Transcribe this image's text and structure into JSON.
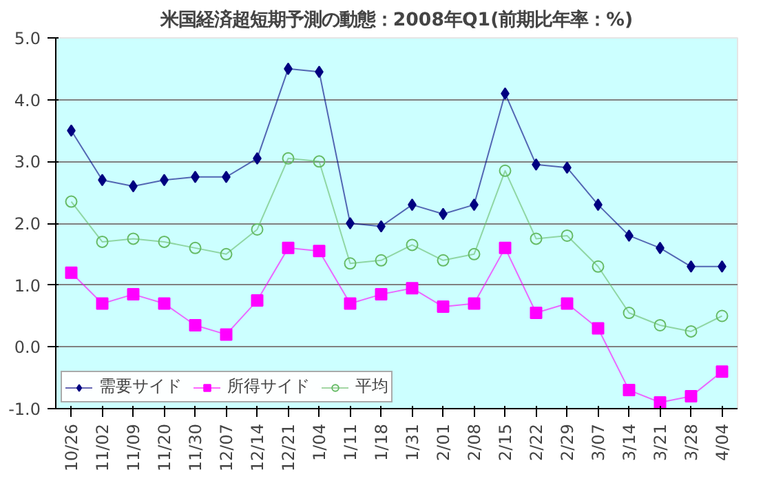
{
  "chart_data": {
    "type": "line",
    "title": "米国経済超短期予測の動態：2008年Q1(前期比年率：%)",
    "categories": [
      "10/26",
      "11/02",
      "11/09",
      "11/20",
      "11/30",
      "12/07",
      "12/14",
      "12/21",
      "1/04",
      "1/11",
      "1/18",
      "1/31",
      "2/01",
      "2/08",
      "2/15",
      "2/22",
      "2/29",
      "3/07",
      "3/14",
      "3/21",
      "3/28",
      "4/04"
    ],
    "series": [
      {
        "name": "需要サイド",
        "color": "#000080",
        "marker": "diamond",
        "values": [
          3.5,
          2.7,
          2.6,
          2.7,
          2.75,
          2.75,
          3.05,
          4.5,
          4.45,
          2.0,
          1.95,
          2.3,
          2.15,
          2.3,
          4.1,
          2.95,
          2.9,
          2.3,
          1.8,
          1.6,
          1.3,
          1.3
        ]
      },
      {
        "name": "所得サイド",
        "color": "#ff00ff",
        "marker": "square",
        "values": [
          1.2,
          0.7,
          0.85,
          0.7,
          0.35,
          0.2,
          0.75,
          1.6,
          1.55,
          0.7,
          0.85,
          0.95,
          0.65,
          0.7,
          1.6,
          0.55,
          0.7,
          0.3,
          -0.7,
          -0.9,
          -0.8,
          -0.4
        ]
      },
      {
        "name": "平均",
        "color": "#66bb66",
        "marker": "circle",
        "values": [
          2.35,
          1.7,
          1.75,
          1.7,
          1.6,
          1.5,
          1.9,
          3.05,
          3.0,
          1.35,
          1.4,
          1.65,
          1.4,
          1.5,
          2.85,
          1.75,
          1.8,
          1.3,
          0.55,
          0.35,
          0.25,
          0.5
        ]
      }
    ],
    "ylim": [
      -1.0,
      5.0
    ],
    "yticks": [
      {
        "value": -1,
        "label": "-1.0"
      },
      {
        "value": 0,
        "label": "0.0"
      },
      {
        "value": 1,
        "label": "1.0"
      },
      {
        "value": 2,
        "label": "2.0"
      },
      {
        "value": 3,
        "label": "3.0"
      },
      {
        "value": 4,
        "label": "4.0"
      },
      {
        "value": 5,
        "label": "5.0"
      }
    ],
    "grid": "y",
    "legend": "bottom left",
    "line_style": "solid"
  }
}
